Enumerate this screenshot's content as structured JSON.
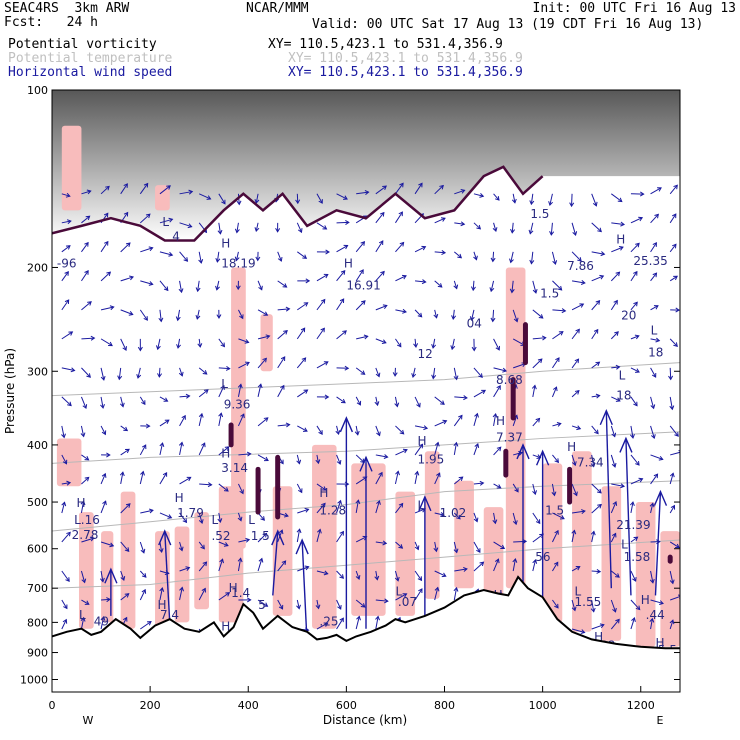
{
  "header": {
    "model": "SEAC4RS  3km ARW",
    "forecast": "Fcst:   24 h",
    "org": "NCAR/MMM",
    "init": "Init: 00 UTC Fri 16 Aug 13",
    "valid": "Valid: 00 UTC Sat 17 Aug 13 (19 CDT Fri 16 Aug 13)"
  },
  "legend": [
    {
      "name": "Potential vorticity",
      "xy": "XY= 110.5,423.1 to 531.4,356.9",
      "color": "#000000"
    },
    {
      "name": "Potential temperature",
      "xy": "XY= 110.5,423.1 to 531.4,356.9",
      "color": "#c0c0c0"
    },
    {
      "name": "Horizontal wind speed",
      "xy": "XY= 110.5,423.1 to 531.4,356.9",
      "color": "#1a1aa0"
    }
  ],
  "chart_data": {
    "type": "cross-section",
    "xlabel": "Distance (km)",
    "ylabel": "Pressure (hPa)",
    "xlim": [
      0,
      1280
    ],
    "ylim": [
      1050,
      100
    ],
    "y_log": true,
    "x_ticks": [
      0,
      200,
      400,
      600,
      800,
      1000,
      1200
    ],
    "y_ticks": [
      100,
      200,
      300,
      400,
      500,
      600,
      700,
      800,
      900,
      1000
    ],
    "endpoints": {
      "left": "W",
      "right": "E"
    },
    "colors": {
      "pv_shade": "#f8bcbc",
      "pv_high": "#4a0a3a",
      "theta": "#b8b8b8",
      "wind": "#1a1aa0",
      "labels": "#2a2a80",
      "terrain": "#000000"
    },
    "terrain": {
      "x": [
        0,
        30,
        60,
        80,
        100,
        130,
        160,
        180,
        210,
        240,
        270,
        300,
        330,
        350,
        370,
        390,
        410,
        430,
        460,
        490,
        520,
        540,
        560,
        580,
        600,
        620,
        650,
        680,
        700,
        720,
        760,
        800,
        840,
        880,
        910,
        930,
        950,
        970,
        1000,
        1030,
        1060,
        1100,
        1150,
        1200,
        1250,
        1280
      ],
      "p": [
        845,
        830,
        820,
        840,
        830,
        790,
        820,
        850,
        810,
        790,
        820,
        830,
        800,
        845,
        815,
        745,
        770,
        820,
        780,
        815,
        830,
        855,
        850,
        840,
        860,
        845,
        830,
        810,
        790,
        800,
        780,
        755,
        720,
        705,
        715,
        720,
        670,
        700,
        725,
        790,
        830,
        855,
        870,
        880,
        885,
        885
      ]
    },
    "tropopause": {
      "x": [
        0,
        60,
        120,
        180,
        230,
        290,
        350,
        390,
        430,
        470,
        520,
        580,
        640,
        700,
        760,
        820,
        880,
        920,
        960,
        1000
      ],
      "p": [
        175,
        170,
        165,
        170,
        180,
        180,
        160,
        150,
        160,
        150,
        170,
        160,
        165,
        150,
        165,
        160,
        140,
        135,
        150,
        140
      ]
    },
    "theta_lines": [
      {
        "x": [
          0,
          200,
          400,
          600,
          800,
          1000,
          1280
        ],
        "p": [
          330,
          325,
          320,
          315,
          310,
          300,
          290
        ]
      },
      {
        "x": [
          0,
          200,
          400,
          600,
          800,
          1000,
          1280
        ],
        "p": [
          430,
          420,
          415,
          410,
          400,
          390,
          380
        ]
      },
      {
        "x": [
          0,
          200,
          400,
          600,
          800,
          1000,
          1280
        ],
        "p": [
          560,
          540,
          520,
          505,
          480,
          470,
          460
        ]
      },
      {
        "x": [
          0,
          200,
          400,
          600,
          800,
          1000,
          1280
        ],
        "p": [
          700,
          690,
          660,
          640,
          620,
          600,
          580
        ]
      }
    ],
    "pv_shading": [
      {
        "x0": 10,
        "x1": 60,
        "p0": 390,
        "p1": 470
      },
      {
        "x0": 55,
        "x1": 85,
        "p0": 520,
        "p1": 820
      },
      {
        "x0": 100,
        "x1": 125,
        "p0": 560,
        "p1": 800
      },
      {
        "x0": 140,
        "x1": 170,
        "p0": 480,
        "p1": 820
      },
      {
        "x0": 210,
        "x1": 240,
        "p0": 560,
        "p1": 820
      },
      {
        "x0": 250,
        "x1": 280,
        "p0": 550,
        "p1": 800
      },
      {
        "x0": 290,
        "x1": 320,
        "p0": 520,
        "p1": 760
      },
      {
        "x0": 340,
        "x1": 390,
        "p0": 470,
        "p1": 800
      },
      {
        "x0": 365,
        "x1": 395,
        "p0": 200,
        "p1": 600
      },
      {
        "x0": 425,
        "x1": 450,
        "p0": 240,
        "p1": 300
      },
      {
        "x0": 450,
        "x1": 490,
        "p0": 470,
        "p1": 780
      },
      {
        "x0": 530,
        "x1": 580,
        "p0": 400,
        "p1": 820
      },
      {
        "x0": 610,
        "x1": 680,
        "p0": 430,
        "p1": 780
      },
      {
        "x0": 700,
        "x1": 740,
        "p0": 480,
        "p1": 780
      },
      {
        "x0": 760,
        "x1": 790,
        "p0": 410,
        "p1": 730
      },
      {
        "x0": 820,
        "x1": 860,
        "p0": 460,
        "p1": 700
      },
      {
        "x0": 880,
        "x1": 920,
        "p0": 510,
        "p1": 720
      },
      {
        "x0": 925,
        "x1": 965,
        "p0": 200,
        "p1": 700
      },
      {
        "x0": 1000,
        "x1": 1040,
        "p0": 430,
        "p1": 800
      },
      {
        "x0": 1060,
        "x1": 1100,
        "p0": 410,
        "p1": 830
      },
      {
        "x0": 1120,
        "x1": 1160,
        "p0": 470,
        "p1": 860
      },
      {
        "x0": 1190,
        "x1": 1230,
        "p0": 500,
        "p1": 880
      },
      {
        "x0": 1240,
        "x1": 1280,
        "p0": 560,
        "p1": 880
      },
      {
        "x0": 20,
        "x1": 60,
        "p0": 115,
        "p1": 160
      },
      {
        "x0": 210,
        "x1": 240,
        "p0": 145,
        "p1": 160
      }
    ],
    "pv_high_cores": [
      {
        "x": 365,
        "p0": 370,
        "p1": 400
      },
      {
        "x": 420,
        "p0": 440,
        "p1": 520
      },
      {
        "x": 460,
        "p0": 420,
        "p1": 530
      },
      {
        "x": 925,
        "p0": 410,
        "p1": 450
      },
      {
        "x": 940,
        "p0": 310,
        "p1": 360
      },
      {
        "x": 965,
        "p0": 250,
        "p1": 290
      },
      {
        "x": 1055,
        "p0": 440,
        "p1": 500
      },
      {
        "x": 1260,
        "p0": 620,
        "p1": 630
      }
    ],
    "wind_arrows": [
      {
        "x": 120,
        "p0": 780,
        "p1": 650,
        "dx": 0
      },
      {
        "x": 160,
        "p0": 830,
        "p1": 900,
        "dx": 0
      },
      {
        "x": 240,
        "p0": 800,
        "p1": 560,
        "dx": -5
      },
      {
        "x": 450,
        "p0": 720,
        "p1": 560,
        "dx": 5
      },
      {
        "x": 520,
        "p0": 870,
        "p1": 580,
        "dx": -5
      },
      {
        "x": 600,
        "p0": 820,
        "p1": 360,
        "dx": 0
      },
      {
        "x": 640,
        "p0": 820,
        "p1": 420,
        "dx": 0
      },
      {
        "x": 760,
        "p0": 780,
        "p1": 490,
        "dx": 0
      },
      {
        "x": 960,
        "p0": 720,
        "p1": 400,
        "dx": 0
      },
      {
        "x": 1000,
        "p0": 800,
        "p1": 410,
        "dx": 0
      },
      {
        "x": 1140,
        "p0": 700,
        "p1": 350,
        "dx": -5
      },
      {
        "x": 1180,
        "p0": 720,
        "p1": 390,
        "dx": -5
      },
      {
        "x": 1230,
        "p0": 720,
        "p1": 480,
        "dx": 5
      }
    ],
    "hl_labels": [
      {
        "t": "H",
        "x": 50,
        "p": 510
      },
      {
        "t": "L.16",
        "x": 45,
        "p": 545
      },
      {
        "t": "2.78",
        "x": 40,
        "p": 578
      },
      {
        "t": "H",
        "x": 250,
        "p": 500
      },
      {
        "t": "1.79",
        "x": 255,
        "p": 530
      },
      {
        "t": "L",
        "x": 325,
        "p": 545
      },
      {
        "t": ".52",
        "x": 325,
        "p": 580
      },
      {
        "t": "H",
        "x": 345,
        "p": 420
      },
      {
        "t": "3.14",
        "x": 345,
        "p": 445
      },
      {
        "t": "L",
        "x": 345,
        "p": 320
      },
      {
        "t": "9.36",
        "x": 350,
        "p": 347
      },
      {
        "t": "H",
        "x": 345,
        "p": 185
      },
      {
        "t": "18.19",
        "x": 345,
        "p": 200
      },
      {
        "t": "L",
        "x": 225,
        "p": 170
      },
      {
        "t": "4",
        "x": 245,
        "p": 180
      },
      {
        "t": "-96",
        "x": 10,
        "p": 200
      },
      {
        "t": "L",
        "x": 400,
        "p": 545
      },
      {
        "t": "1.5",
        "x": 405,
        "p": 580
      },
      {
        "t": "H",
        "x": 545,
        "p": 490
      },
      {
        "t": "1.28",
        "x": 545,
        "p": 525
      },
      {
        "t": "H",
        "x": 595,
        "p": 200
      },
      {
        "t": "16.91",
        "x": 600,
        "p": 218
      },
      {
        "t": "H",
        "x": 745,
        "p": 400
      },
      {
        "t": "1.95",
        "x": 745,
        "p": 430
      },
      {
        "t": "L",
        "x": 745,
        "p": 515
      },
      {
        "t": "1.02",
        "x": 790,
        "p": 530
      },
      {
        "t": "12",
        "x": 745,
        "p": 285
      },
      {
        "t": "H",
        "x": 905,
        "p": 370
      },
      {
        "t": "7.37",
        "x": 905,
        "p": 395
      },
      {
        "t": "8.68",
        "x": 905,
        "p": 315
      },
      {
        "t": "04",
        "x": 845,
        "p": 253
      },
      {
        "t": "1.5",
        "x": 975,
        "p": 165
      },
      {
        "t": "1.5",
        "x": 995,
        "p": 225
      },
      {
        "t": "7.86",
        "x": 1050,
        "p": 202
      },
      {
        "t": "H",
        "x": 1050,
        "p": 410
      },
      {
        "t": "7.34",
        "x": 1070,
        "p": 435
      },
      {
        "t": "L",
        "x": 1155,
        "p": 310
      },
      {
        "t": "18",
        "x": 1150,
        "p": 335
      },
      {
        "t": "L",
        "x": 1220,
        "p": 260
      },
      {
        "t": "18",
        "x": 1215,
        "p": 283
      },
      {
        "t": "20",
        "x": 1160,
        "p": 245
      },
      {
        "t": "25.35",
        "x": 1185,
        "p": 198
      },
      {
        "t": "H",
        "x": 1150,
        "p": 182
      },
      {
        "t": "1.5",
        "x": 1005,
        "p": 525
      },
      {
        "t": "21.39",
        "x": 1150,
        "p": 555
      },
      {
        "t": "L",
        "x": 1160,
        "p": 600
      },
      {
        "t": "1.58",
        "x": 1165,
        "p": 630
      },
      {
        "t": "56",
        "x": 985,
        "p": 630
      },
      {
        "t": "L",
        "x": 700,
        "p": 720
      },
      {
        "t": ".07",
        "x": 705,
        "p": 750
      },
      {
        "t": "L",
        "x": 1065,
        "p": 720
      },
      {
        "t": "1.55",
        "x": 1065,
        "p": 750
      },
      {
        "t": "H",
        "x": 1200,
        "p": 745
      },
      {
        "t": ".44",
        "x": 1210,
        "p": 790
      },
      {
        "t": "H",
        "x": 900,
        "p": 730
      },
      {
        "t": "13",
        "x": 940,
        "p": 760
      },
      {
        "t": "H",
        "x": 215,
        "p": 760
      },
      {
        "t": "7.4",
        "x": 220,
        "p": 790
      },
      {
        "t": "H",
        "x": 345,
        "p": 825
      },
      {
        "t": ".72",
        "x": 360,
        "p": 860
      },
      {
        "t": "L",
        "x": 55,
        "p": 790
      },
      {
        "t": "49",
        "x": 85,
        "p": 810
      },
      {
        "t": "H",
        "x": 360,
        "p": 710
      },
      {
        "t": "1.4",
        "x": 365,
        "p": 725
      },
      {
        "t": "5",
        "x": 420,
        "p": 760
      },
      {
        "t": ".25",
        "x": 545,
        "p": 810
      },
      {
        "t": "4.96",
        "x": 715,
        "p": 850
      },
      {
        "t": "H",
        "x": 1105,
        "p": 860
      },
      {
        "t": ".02",
        "x": 1110,
        "p": 890
      },
      {
        "t": "H",
        "x": 1230,
        "p": 880
      },
      {
        "t": "5.54",
        "x": 1235,
        "p": 905
      }
    ]
  }
}
